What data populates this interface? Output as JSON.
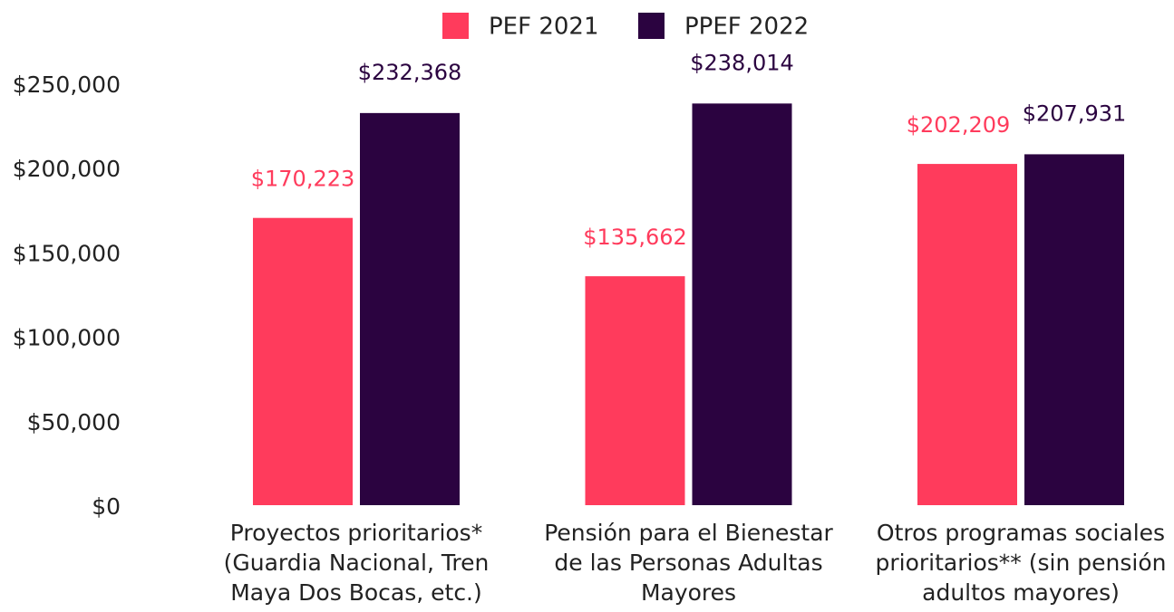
{
  "chart_data": {
    "type": "bar",
    "categories": [
      "Proyectos prioritarios* (Guardia Nacional, Tren Maya Dos Bocas, etc.)",
      "Pensión para el Bienestar de las Personas Adultas Mayores",
      "Otros programas sociales prioritarios** (sin pensión adultos mayores)"
    ],
    "series": [
      {
        "name": "PEF 2021",
        "color": "#ff3b5c",
        "values": [
          170223,
          135662,
          202209
        ],
        "value_labels": [
          "$170,223",
          "$135,662",
          "$202,209"
        ]
      },
      {
        "name": "PPEF 2022",
        "color": "#2b0340",
        "values": [
          232368,
          238014,
          207931
        ],
        "value_labels": [
          "$232,368",
          "$238,014",
          "$207,931"
        ]
      }
    ],
    "ylim": [
      0,
      250000
    ],
    "yticks": [
      {
        "value": 0,
        "label": "$0"
      },
      {
        "value": 50000,
        "label": "$50,000"
      },
      {
        "value": 100000,
        "label": "$100,000"
      },
      {
        "value": 150000,
        "label": "$150,000"
      },
      {
        "value": 200000,
        "label": "$200,000"
      },
      {
        "value": 250000,
        "label": "$250,000"
      }
    ],
    "grid": false,
    "legend": "top"
  }
}
